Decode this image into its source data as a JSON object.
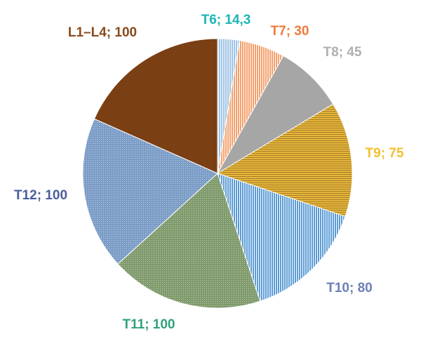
{
  "chart_data": {
    "type": "pie",
    "title": "",
    "start_angle_deg": 0,
    "direction": "clockwise",
    "slices": [
      {
        "label": "T6; 14,3",
        "category": "T6",
        "value": 14.3,
        "color": "#9DC3E6",
        "pattern": "vertical-lines",
        "label_color": "#1BB5B5"
      },
      {
        "label": "T7; 30",
        "category": "T7",
        "value": 30,
        "color": "#F4A06C",
        "pattern": "vertical-lines",
        "label_color": "#F07A3C"
      },
      {
        "label": "T8; 45",
        "category": "T8",
        "value": 45,
        "color": "#A6A6A6",
        "pattern": "solid",
        "label_color": "#B0B0B0"
      },
      {
        "label": "T9; 75",
        "category": "T9",
        "value": 75,
        "color": "#E8B53A",
        "pattern": "horizontal-lines",
        "label_color": "#F2C12E"
      },
      {
        "label": "T10; 80",
        "category": "T10",
        "value": 80,
        "color": "#5B9BD5",
        "pattern": "vertical-lines",
        "label_color": "#6E7FB8"
      },
      {
        "label": "T11; 100",
        "category": "T11",
        "value": 100,
        "color": "#7F9A6B",
        "pattern": "dots",
        "label_color": "#2FA27A"
      },
      {
        "label": "T12; 100",
        "category": "T12",
        "value": 100,
        "color": "#7A9CC6",
        "pattern": "dots",
        "label_color": "#4A5E9C"
      },
      {
        "label": "L1–L4; 100",
        "category": "L1–L4",
        "value": 100,
        "color": "#7B3F14",
        "pattern": "solid",
        "label_color": "#8A4A1A"
      }
    ]
  }
}
